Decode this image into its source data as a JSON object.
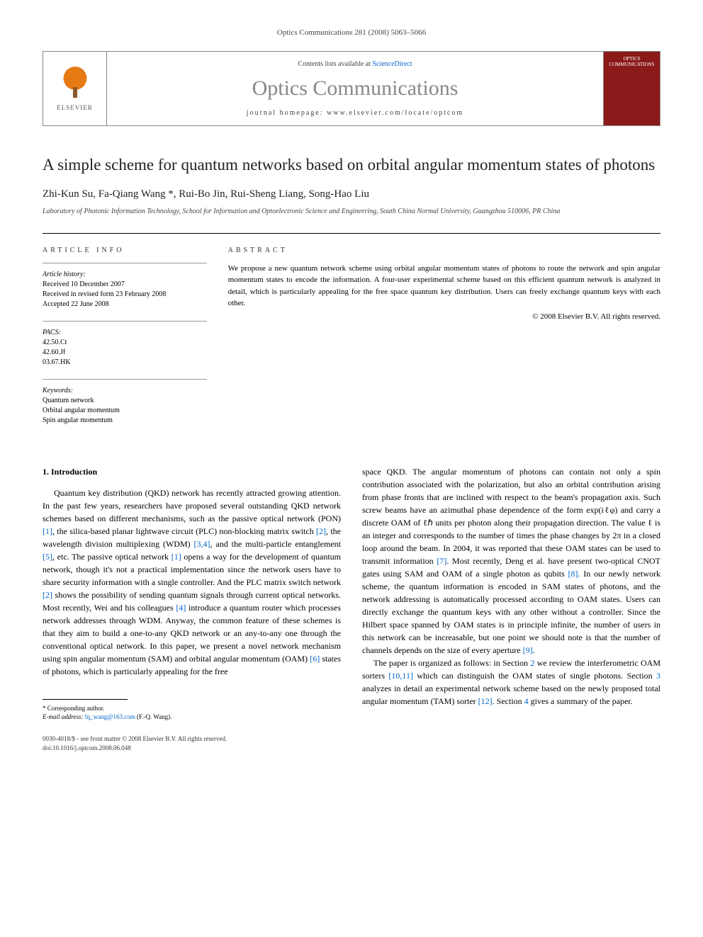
{
  "citation": "Optics Communications 281 (2008) 5063–5066",
  "contents_text": "Contents lists available at",
  "sciencedirect": "ScienceDirect",
  "journal": "Optics Communications",
  "homepage_label": "journal homepage: www.elsevier.com/locate/optcom",
  "elsevier_label": "ELSEVIER",
  "cover_text": "OPTICS COMMUNICATIONS",
  "title": "A simple scheme for quantum networks based on orbital angular momentum states of photons",
  "authors": "Zhi-Kun Su, Fa-Qiang Wang *, Rui-Bo Jin, Rui-Sheng Liang, Song-Hao Liu",
  "affiliation": "Laboratory of Photonic Information Technology, School for Information and Optoelectronic Science and Engineering, South China Normal University, Guangzhou 510006, PR China",
  "article_info_heading": "ARTICLE INFO",
  "abstract_heading": "ABSTRACT",
  "history": {
    "label": "Article history:",
    "received": "Received 10 December 2007",
    "revised": "Received in revised form 23 February 2008",
    "accepted": "Accepted 22 June 2008"
  },
  "pacs": {
    "label": "PACS:",
    "codes": [
      "42.50.Ct",
      "42.60.Jf",
      "03.67.HK"
    ]
  },
  "keywords": {
    "label": "Keywords:",
    "items": [
      "Quantum network",
      "Orbital angular momentum",
      "Spin angular momentum"
    ]
  },
  "abstract": "We propose a new quantum network scheme using orbital angular momentum states of photons to route the network and spin angular momentum states to encode the information. A four-user experimental scheme based on this efficient quantum network is analyzed in detail, which is particularly appealing for the free space quantum key distribution. Users can freely exchange quantum keys with each other.",
  "copyright": "© 2008 Elsevier B.V. All rights reserved.",
  "section1_heading": "1. Introduction",
  "body_left_1": "Quantum key distribution (QKD) network has recently attracted growing attention. In the past few years, researchers have proposed several outstanding QKD network schemes based on different mechanisms, such as the passive optical network (PON) ",
  "ref1": "[1]",
  "body_left_2": ", the silica-based planar lightwave circuit (PLC) non-blocking matrix switch ",
  "ref2": "[2]",
  "body_left_3": ", the wavelength division multiplexing (WDM) ",
  "ref34": "[3,4]",
  "body_left_4": ", and the multi-particle entanglement ",
  "ref5": "[5]",
  "body_left_5": ", etc. The passive optical network ",
  "body_left_6": " opens a way for the development of quantum network, though it's not a practical implementation since the network users have to share security information with a single controller. And the PLC matrix switch network ",
  "body_left_7": " shows the possibility of sending quantum signals through current optical networks. Most recently, Wei and his colleagues ",
  "ref4": "[4]",
  "body_left_8": " introduce a quantum router which processes network addresses through WDM. Anyway, the common feature of these schemes is that they aim to build a one-to-any QKD network or an any-to-any one through the conventional optical network. In this paper, we present a novel network mechanism using spin angular momentum (SAM) and orbital angular momentum (OAM) ",
  "ref6": "[6]",
  "body_left_9": " states of photons, which is particularly appealing for the free",
  "body_right_1": "space QKD. The angular momentum of photons can contain not only a spin contribution associated with the polarization, but also an orbital contribution arising from phase fronts that are inclined with respect to the beam's propagation axis. Such screw beams have an azimuthal phase dependence of the form exp(iℓφ) and carry a discrete OAM of ℓℏ units per photon along their propagation direction. The value ℓ is an integer and corresponds to the number of times the phase changes by 2π in a closed loop around the beam. In 2004, it was reported that these OAM states can be used to transmit information ",
  "ref7": "[7]",
  "body_right_2": ". Most recently, Deng et al. have present two-optical CNOT gates using SAM and OAM of a single photon as qubits ",
  "ref8": "[8]",
  "body_right_3": ". In our newly network scheme, the quantum information is encoded in SAM states of photons, and the network addressing is automatically processed according to OAM states. Users can directly exchange the quantum keys with any other without a controller. Since the Hilbert space spanned by OAM states is in principle infinite, the number of users in this network can be increasable, but one point we should note is that the number of channels depends on the size of every aperture ",
  "ref9": "[9]",
  "body_right_4": ".",
  "body_right_p2_1": "The paper is organized as follows: in Section ",
  "sec2": "2",
  "body_right_p2_2": " we review the interferometric OAM sorters ",
  "ref1011": "[10,11]",
  "body_right_p2_3": " which can distinguish the OAM states of single photons. Section ",
  "sec3": "3",
  "body_right_p2_4": " analyzes in detail an experimental network scheme based on the newly proposed total angular momentum (TAM) sorter ",
  "ref12": "[12]",
  "body_right_p2_5": ". Section ",
  "sec4": "4",
  "body_right_p2_6": " gives a summary of the paper.",
  "corresponding_label": "* Corresponding author.",
  "email_label": "E-mail address:",
  "email": "fq_wang@163.com",
  "email_author": "(F.-Q. Wang).",
  "issn_line": "0030-4018/$ - see front matter © 2008 Elsevier B.V. All rights reserved.",
  "doi_line": "doi:10.1016/j.optcom.2008.06.048"
}
